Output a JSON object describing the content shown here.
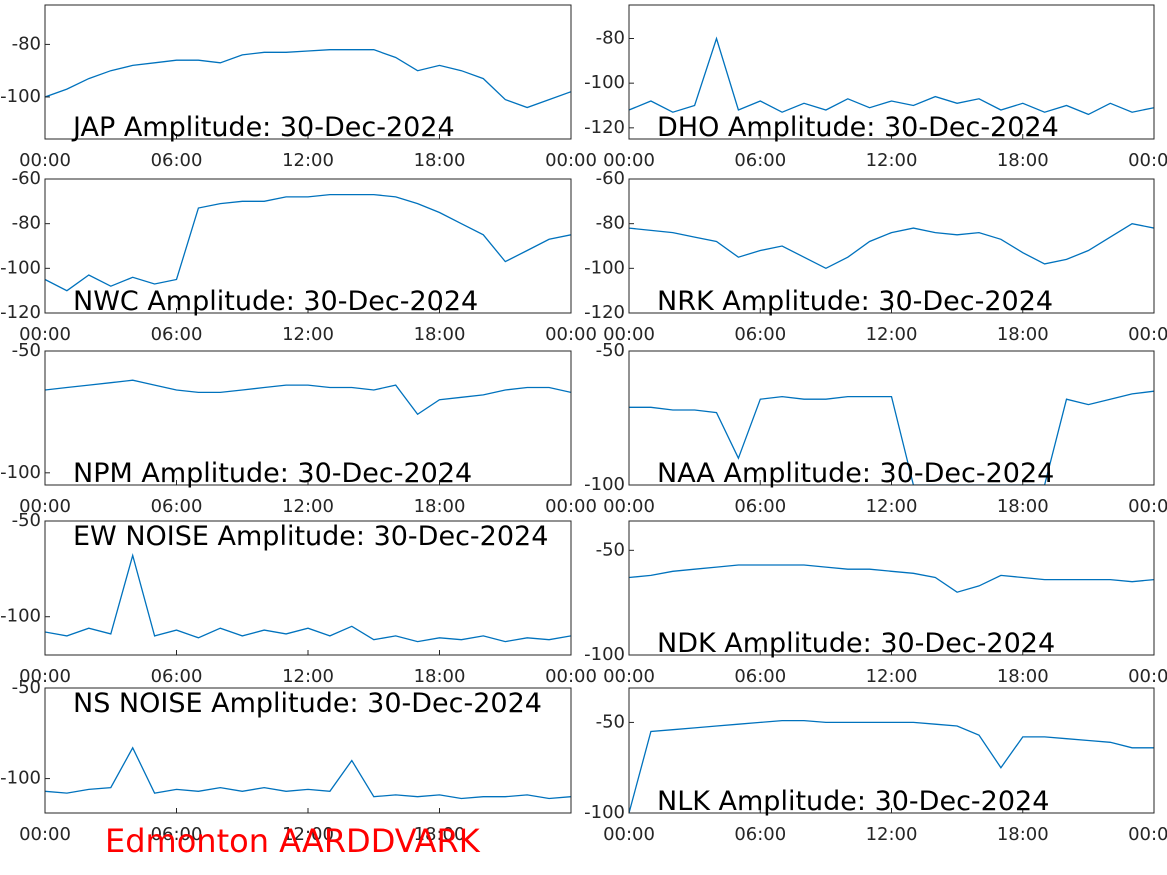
{
  "chart_data": [
    {
      "type": "line",
      "title": "JAP Amplitude: 30-Dec-2024",
      "x": [
        0,
        1,
        2,
        3,
        4,
        5,
        6,
        7,
        8,
        9,
        10,
        11,
        12,
        13,
        14,
        15,
        16,
        17,
        18,
        19,
        20,
        21,
        22,
        23,
        24
      ],
      "values": [
        -100,
        -97,
        -93,
        -90,
        -88,
        -87,
        -86,
        -86,
        -87,
        -84,
        -83,
        -83,
        -82.5,
        -82,
        -82,
        -82,
        -85,
        -90,
        -88,
        -90,
        -93,
        -101,
        -104,
        -101,
        -98
      ],
      "color": "#0072bd",
      "xlim": [
        0,
        24
      ],
      "xticks": [
        {
          "value": 0,
          "label": "00:00"
        },
        {
          "value": 6,
          "label": "06:00"
        },
        {
          "value": 12,
          "label": "12:00"
        },
        {
          "value": 18,
          "label": "18:00"
        },
        {
          "value": 24,
          "label": "00:00"
        }
      ],
      "ylim": [
        -116,
        -65
      ],
      "yticks": [
        -100,
        -80
      ]
    },
    {
      "type": "line",
      "title": "DHO Amplitude: 30-Dec-2024",
      "x": [
        0,
        1,
        2,
        3,
        4,
        5,
        6,
        7,
        8,
        9,
        10,
        11,
        12,
        13,
        14,
        15,
        16,
        17,
        18,
        19,
        20,
        21,
        22,
        23,
        24
      ],
      "values": [
        -112,
        -108,
        -113,
        -110,
        -80,
        -112,
        -108,
        -113,
        -109,
        -112,
        -107,
        -111,
        -108,
        -110,
        -106,
        -109,
        -107,
        -112,
        -109,
        -113,
        -110,
        -114,
        -109,
        -113,
        -111
      ],
      "color": "#0072bd",
      "xlim": [
        0,
        24
      ],
      "xticks": [
        {
          "value": 0,
          "label": "00:00"
        },
        {
          "value": 6,
          "label": "06:00"
        },
        {
          "value": 12,
          "label": "12:00"
        },
        {
          "value": 18,
          "label": "18:00"
        },
        {
          "value": 24,
          "label": "00:00"
        }
      ],
      "ylim": [
        -125,
        -65
      ],
      "yticks": [
        -120,
        -100,
        -80
      ]
    },
    {
      "type": "line",
      "title": "NWC Amplitude: 30-Dec-2024",
      "x": [
        0,
        1,
        2,
        3,
        4,
        5,
        6,
        7,
        8,
        9,
        10,
        11,
        12,
        13,
        14,
        15,
        16,
        17,
        18,
        19,
        20,
        21,
        22,
        23,
        24
      ],
      "values": [
        -105,
        -110,
        -103,
        -108,
        -104,
        -107,
        -105,
        -73,
        -71,
        -70,
        -70,
        -68,
        -68,
        -67,
        -67,
        -67,
        -68,
        -71,
        -75,
        -80,
        -85,
        -97,
        -92,
        -87,
        -85
      ],
      "color": "#0072bd",
      "xlim": [
        0,
        24
      ],
      "xticks": [
        {
          "value": 0,
          "label": "00:00"
        },
        {
          "value": 6,
          "label": "06:00"
        },
        {
          "value": 12,
          "label": "12:00"
        },
        {
          "value": 18,
          "label": "18:00"
        },
        {
          "value": 24,
          "label": "00:00"
        }
      ],
      "ylim": [
        -120,
        -60
      ],
      "yticks": [
        -120,
        -100,
        -80,
        -60
      ]
    },
    {
      "type": "line",
      "title": "NRK Amplitude: 30-Dec-2024",
      "x": [
        0,
        1,
        2,
        3,
        4,
        5,
        6,
        7,
        8,
        9,
        10,
        11,
        12,
        13,
        14,
        15,
        16,
        17,
        18,
        19,
        20,
        21,
        22,
        23,
        24
      ],
      "values": [
        -82,
        -83,
        -84,
        -86,
        -88,
        -95,
        -92,
        -90,
        -95,
        -100,
        -95,
        -88,
        -84,
        -82,
        -84,
        -85,
        -84,
        -87,
        -93,
        -98,
        -96,
        -92,
        -86,
        -80,
        -82
      ],
      "color": "#0072bd",
      "xlim": [
        0,
        24
      ],
      "xticks": [
        {
          "value": 0,
          "label": "00:00"
        },
        {
          "value": 6,
          "label": "06:00"
        },
        {
          "value": 12,
          "label": "12:00"
        },
        {
          "value": 18,
          "label": "18:00"
        },
        {
          "value": 24,
          "label": "00:00"
        }
      ],
      "ylim": [
        -120,
        -60
      ],
      "yticks": [
        -120,
        -100,
        -80,
        -60
      ]
    },
    {
      "type": "line",
      "title": "NPM Amplitude: 30-Dec-2024",
      "x": [
        0,
        1,
        2,
        3,
        4,
        5,
        6,
        7,
        8,
        9,
        10,
        11,
        12,
        13,
        14,
        15,
        16,
        17,
        18,
        19,
        20,
        21,
        22,
        23,
        24
      ],
      "values": [
        -66,
        -65,
        -64,
        -63,
        -62,
        -64,
        -66,
        -67,
        -67,
        -66,
        -65,
        -64,
        -64,
        -65,
        -65,
        -66,
        -64,
        -76,
        -70,
        -69,
        -68,
        -66,
        -65,
        -65,
        -67
      ],
      "color": "#0072bd",
      "xlim": [
        0,
        24
      ],
      "xticks": [
        {
          "value": 0,
          "label": "00:00"
        },
        {
          "value": 6,
          "label": "06:00"
        },
        {
          "value": 12,
          "label": "12:00"
        },
        {
          "value": 18,
          "label": "18:00"
        },
        {
          "value": 24,
          "label": "00:00"
        }
      ],
      "ylim": [
        -105,
        -50
      ],
      "yticks": [
        -100,
        -50
      ]
    },
    {
      "type": "line",
      "title": "NAA Amplitude: 30-Dec-2024",
      "x": [
        0,
        1,
        2,
        3,
        4,
        5,
        6,
        7,
        8,
        9,
        10,
        11,
        12,
        13,
        14,
        15,
        16,
        17,
        18,
        19,
        20,
        21,
        22,
        23,
        24
      ],
      "values": [
        -71,
        -71,
        -72,
        -72,
        -73,
        -90,
        -68,
        -67,
        -68,
        -68,
        -67,
        -67,
        -67,
        -100,
        -100,
        -100,
        -100,
        -100,
        -100,
        -100,
        -68,
        -70,
        -68,
        -66,
        -65
      ],
      "color": "#0072bd",
      "xlim": [
        0,
        24
      ],
      "xticks": [
        {
          "value": 0,
          "label": "00:00"
        },
        {
          "value": 6,
          "label": "06:00"
        },
        {
          "value": 12,
          "label": "12:00"
        },
        {
          "value": 18,
          "label": "18:00"
        },
        {
          "value": 24,
          "label": "00:00"
        }
      ],
      "ylim": [
        -100,
        -50
      ],
      "yticks": [
        -100,
        -50
      ]
    },
    {
      "type": "line",
      "title": "EW NOISE Amplitude: 30-Dec-2024",
      "x": [
        0,
        1,
        2,
        3,
        4,
        5,
        6,
        7,
        8,
        9,
        10,
        11,
        12,
        13,
        14,
        15,
        16,
        17,
        18,
        19,
        20,
        21,
        22,
        23,
        24
      ],
      "values": [
        -108,
        -110,
        -106,
        -109,
        -68,
        -110,
        -107,
        -111,
        -106,
        -110,
        -107,
        -109,
        -106,
        -110,
        -105,
        -112,
        -110,
        -113,
        -111,
        -112,
        -110,
        -113,
        -111,
        -112,
        -110
      ],
      "color": "#0072bd",
      "xlim": [
        0,
        24
      ],
      "xticks": [
        {
          "value": 0,
          "label": "00:00"
        },
        {
          "value": 6,
          "label": "06:00"
        },
        {
          "value": 12,
          "label": "12:00"
        },
        {
          "value": 18,
          "label": "18:00"
        },
        {
          "value": 24,
          "label": "00:00"
        }
      ],
      "ylim": [
        -120,
        -50
      ],
      "yticks": [
        -100,
        -50
      ]
    },
    {
      "type": "line",
      "title": "NDK Amplitude: 30-Dec-2024",
      "x": [
        0,
        1,
        2,
        3,
        4,
        5,
        6,
        7,
        8,
        9,
        10,
        11,
        12,
        13,
        14,
        15,
        16,
        17,
        18,
        19,
        20,
        21,
        22,
        23,
        24
      ],
      "values": [
        -63,
        -62,
        -60,
        -59,
        -58,
        -57,
        -57,
        -57,
        -57,
        -58,
        -59,
        -59,
        -60,
        -61,
        -63,
        -70,
        -67,
        -62,
        -63,
        -64,
        -64,
        -64,
        -64,
        -65,
        -64
      ],
      "color": "#0072bd",
      "xlim": [
        0,
        24
      ],
      "xticks": [
        {
          "value": 0,
          "label": "00:00"
        },
        {
          "value": 6,
          "label": "06:00"
        },
        {
          "value": 12,
          "label": "12:00"
        },
        {
          "value": 18,
          "label": "18:00"
        },
        {
          "value": 24,
          "label": "00:00"
        }
      ],
      "ylim": [
        -100,
        -36
      ],
      "yticks": [
        -100,
        -50
      ]
    },
    {
      "type": "line",
      "title": "NS NOISE Amplitude: 30-Dec-2024",
      "x": [
        0,
        1,
        2,
        3,
        4,
        5,
        6,
        7,
        8,
        9,
        10,
        11,
        12,
        13,
        14,
        15,
        16,
        17,
        18,
        19,
        20,
        21,
        22,
        23,
        24
      ],
      "values": [
        -107,
        -108,
        -106,
        -105,
        -83,
        -108,
        -106,
        -107,
        -105,
        -107,
        -105,
        -107,
        -106,
        -107,
        -90,
        -110,
        -109,
        -110,
        -109,
        -111,
        -110,
        -110,
        -109,
        -111,
        -110
      ],
      "color": "#0072bd",
      "xlim": [
        0,
        24
      ],
      "xticks": [
        {
          "value": 0,
          "label": "00:00"
        },
        {
          "value": 6,
          "label": "06:00"
        },
        {
          "value": 12,
          "label": "12:00"
        },
        {
          "value": 18,
          "label": "18:00"
        }
      ],
      "ylim": [
        -119,
        -50
      ],
      "yticks": [
        -100,
        -50
      ]
    },
    {
      "type": "line",
      "title": "NLK Amplitude: 30-Dec-2024",
      "x": [
        0,
        1,
        2,
        3,
        4,
        5,
        6,
        7,
        8,
        9,
        10,
        11,
        12,
        13,
        14,
        15,
        16,
        17,
        18,
        19,
        20,
        21,
        22,
        23,
        24
      ],
      "values": [
        -100,
        -55,
        -54,
        -53,
        -52,
        -51,
        -50,
        -49,
        -49,
        -50,
        -50,
        -50,
        -50,
        -50,
        -51,
        -52,
        -57,
        -75,
        -58,
        -58,
        -59,
        -60,
        -61,
        -64,
        -64
      ],
      "color": "#0072bd",
      "xlim": [
        0,
        24
      ],
      "xticks": [
        {
          "value": 0,
          "label": "00:00"
        },
        {
          "value": 6,
          "label": "06:00"
        },
        {
          "value": 12,
          "label": "12:00"
        },
        {
          "value": 18,
          "label": "18:00"
        },
        {
          "value": 24,
          "label": "00:00"
        }
      ],
      "ylim": [
        -100,
        -31
      ],
      "yticks": [
        -100,
        -50
      ]
    }
  ],
  "caption": "Edmonton AARDDVARK"
}
